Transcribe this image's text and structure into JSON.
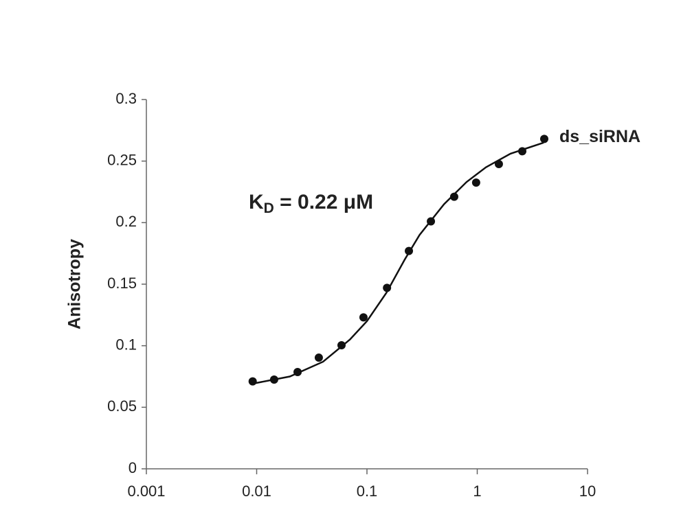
{
  "chart_data": {
    "type": "scatter",
    "y_label": "Anisotropy",
    "annotation": {
      "main": "K",
      "sub": "D",
      "rest": " = 0.22 μM"
    },
    "xscale": "log",
    "xlim": [
      0.001,
      10
    ],
    "xticks": [
      0.001,
      0.01,
      0.1,
      1,
      10
    ],
    "ylim": [
      0,
      0.3
    ],
    "yticks": [
      0,
      0.05,
      0.1,
      0.15,
      0.2,
      0.25,
      0.3
    ],
    "series": [
      {
        "name": "ds_siRNA",
        "color": "#111111",
        "x": [
          0.0092,
          0.0144,
          0.0235,
          0.0366,
          0.0588,
          0.093,
          0.152,
          0.24,
          0.38,
          0.618,
          0.977,
          1.57,
          2.56,
          4.05
        ],
        "values": [
          0.071,
          0.0725,
          0.0786,
          0.0903,
          0.1004,
          0.123,
          0.147,
          0.177,
          0.201,
          0.221,
          0.2325,
          0.2476,
          0.258,
          0.268
        ]
      },
      {
        "color": "#111111",
        "style": "line",
        "x": [
          0.009,
          0.02,
          0.04,
          0.07,
          0.1,
          0.15,
          0.22,
          0.3,
          0.5,
          0.8,
          1.2,
          2,
          4
        ],
        "values": [
          0.069,
          0.075,
          0.087,
          0.105,
          0.12,
          0.143,
          0.17,
          0.19,
          0.215,
          0.233,
          0.245,
          0.256,
          0.265
        ]
      }
    ]
  }
}
